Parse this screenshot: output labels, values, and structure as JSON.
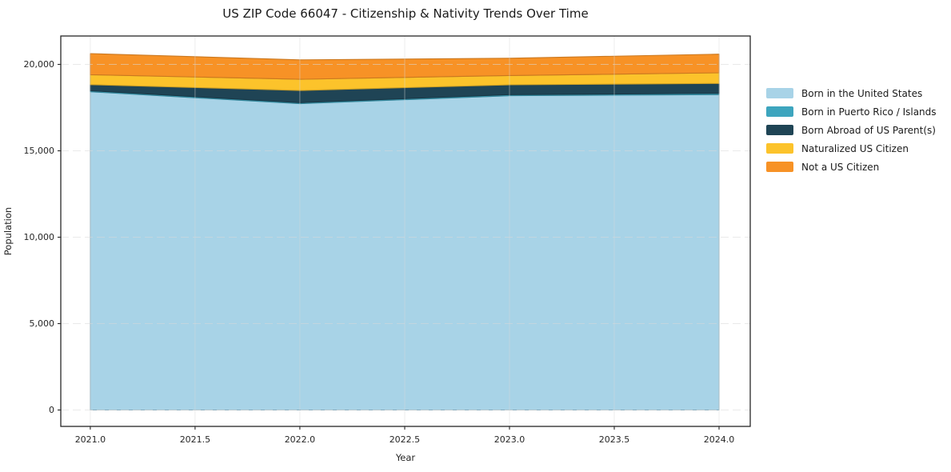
{
  "title": "US ZIP Code 66047 - Citizenship & Nativity Trends Over Time",
  "chart_data": {
    "type": "area",
    "stacked": true,
    "title": "US ZIP Code 66047 - Citizenship & Nativity Trends Over Time",
    "xlabel": "Year",
    "ylabel": "Population",
    "x": [
      2021,
      2022,
      2023,
      2024
    ],
    "series": [
      {
        "name": "Born in the United States",
        "color": "#A8D3E7",
        "values": [
          18420,
          17730,
          18190,
          18250
        ]
      },
      {
        "name": "Born in Puerto Rico / Islands",
        "color": "#3DA5BE",
        "values": [
          60,
          60,
          60,
          75
        ]
      },
      {
        "name": "Born Abroad of US Parent(s)",
        "color": "#1F4455",
        "values": [
          350,
          700,
          570,
          575
        ]
      },
      {
        "name": "Naturalized US Citizen",
        "color": "#FCC32B",
        "values": [
          575,
          650,
          540,
          615
        ]
      },
      {
        "name": "Not a US Citizen",
        "color": "#F79226",
        "values": [
          1220,
          1125,
          1000,
          1080
        ]
      }
    ],
    "totals": [
      20625,
      20265,
      20360,
      20595
    ],
    "xlim": [
      2020.859,
      2024.149
    ],
    "ylim": [
      -949,
      21645
    ],
    "x_tick_values": [
      2021.0,
      2021.5,
      2022.0,
      2022.5,
      2023.0,
      2023.5,
      2024.0
    ],
    "x_tick_labels": [
      "2021.0",
      "2021.5",
      "2022.0",
      "2022.5",
      "2023.0",
      "2023.5",
      "2024.0"
    ],
    "y_tick_values": [
      0,
      5000,
      10000,
      15000,
      20000
    ],
    "y_tick_labels": [
      "0",
      "5,000",
      "10,000",
      "15,000",
      "20,000"
    ],
    "grid": true,
    "legend_position": "right-outside",
    "colors": {
      "grid": "#d9d9d9",
      "spine": "#262626",
      "text": "#1a1a1a",
      "background": "#ffffff"
    }
  }
}
